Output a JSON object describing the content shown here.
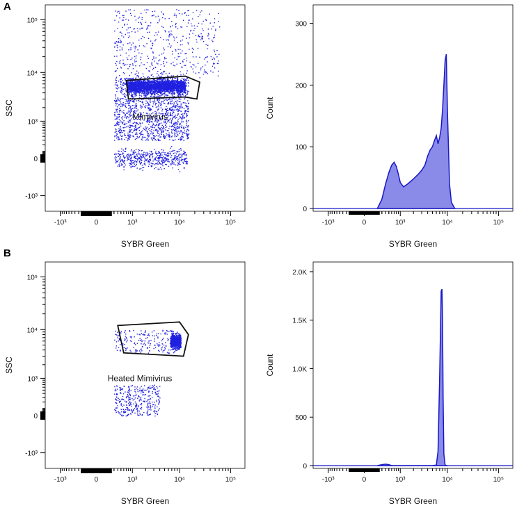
{
  "colors": {
    "dots": "#2020e0",
    "hist_fill": "#8a8ae8",
    "hist_line": "#1818c8"
  },
  "chart_data": [
    {
      "panel": "A",
      "type": "scatter",
      "xlabel": "SYBR Green",
      "ylabel": "SSC",
      "x_ticks": [
        "-10³",
        "0",
        "10³",
        "10⁴",
        "10⁵"
      ],
      "y_ticks": [
        "10⁵",
        "10⁴",
        "10³",
        "0",
        "-10³"
      ],
      "gate_label": "Mimivirus",
      "populations": [
        {
          "x_range": [
            700,
            13000
          ],
          "y_center": 5500,
          "y_spread": 0.12,
          "count": 2600
        },
        {
          "x_range": [
            300,
            15000
          ],
          "y_range": [
            300,
            8000
          ],
          "count": 1500
        },
        {
          "x_range": [
            300,
            14000
          ],
          "y_value": 0,
          "count": 500
        },
        {
          "x_range": [
            300,
            60000
          ],
          "y_range": [
            8000,
            160000
          ],
          "count": 500
        }
      ],
      "gate_polygon": [
        [
          700,
          7000
        ],
        [
          13000,
          8500
        ],
        [
          25000,
          6500
        ],
        [
          22000,
          3000
        ],
        [
          13000,
          3300
        ],
        [
          800,
          3000
        ]
      ]
    },
    {
      "panel": "A",
      "type": "area",
      "xlabel": "SYBR Green",
      "ylabel": "Count",
      "x_ticks": [
        "-10³",
        "0",
        "10³",
        "10⁴",
        "10⁵"
      ],
      "y_ticks": [
        "300",
        "200",
        "100",
        "0"
      ],
      "ylim": [
        0,
        330
      ],
      "x": [
        200,
        300,
        400,
        500,
        600,
        700,
        800,
        900,
        1000,
        1200,
        1500,
        2000,
        2500,
        3000,
        3500,
        4000,
        4500,
        5000,
        5500,
        6000,
        6500,
        7000,
        7500,
        8000,
        8500,
        9000,
        9500,
        10000,
        11000,
        12000,
        14000
      ],
      "values": [
        0,
        15,
        40,
        58,
        70,
        75,
        68,
        55,
        42,
        35,
        40,
        48,
        55,
        62,
        70,
        85,
        95,
        100,
        110,
        118,
        105,
        115,
        130,
        160,
        200,
        240,
        250,
        160,
        40,
        10,
        0
      ]
    },
    {
      "panel": "B",
      "type": "scatter",
      "xlabel": "SYBR Green",
      "ylabel": "SSC",
      "x_ticks": [
        "-10³",
        "0",
        "10³",
        "10⁴",
        "10⁵"
      ],
      "y_ticks": [
        "10⁵",
        "10⁴",
        "10³",
        "0",
        "-10³"
      ],
      "gate_label": "Heated Mimivirus",
      "populations": [
        {
          "x_range": [
            6500,
            10500
          ],
          "y_center": 6000,
          "y_spread": 0.12,
          "count": 900
        },
        {
          "x_range": [
            300,
            8000
          ],
          "y_range": [
            3500,
            10000
          ],
          "count": 200
        },
        {
          "x_range": [
            300,
            4000
          ],
          "y_range": [
            0,
            700
          ],
          "count": 350
        }
      ],
      "gate_polygon": [
        [
          400,
          12000
        ],
        [
          10000,
          14000
        ],
        [
          15000,
          8000
        ],
        [
          12000,
          3000
        ],
        [
          600,
          3500
        ]
      ]
    },
    {
      "panel": "B",
      "type": "area",
      "xlabel": "SYBR Green",
      "ylabel": "Count",
      "x_ticks": [
        "-10³",
        "0",
        "10³",
        "10⁴",
        "10⁵"
      ],
      "y_ticks": [
        "2.0K",
        "1.5K",
        "1.0K",
        "500",
        "0"
      ],
      "ylim": [
        0,
        2100
      ],
      "x": [
        200,
        300,
        400,
        500,
        600,
        5000,
        6000,
        6500,
        7000,
        7500,
        7800,
        8000,
        8200,
        8500,
        9000,
        10000
      ],
      "values": [
        0,
        10,
        15,
        10,
        0,
        0,
        5,
        150,
        900,
        1800,
        1820,
        1500,
        700,
        120,
        5,
        0
      ]
    }
  ]
}
